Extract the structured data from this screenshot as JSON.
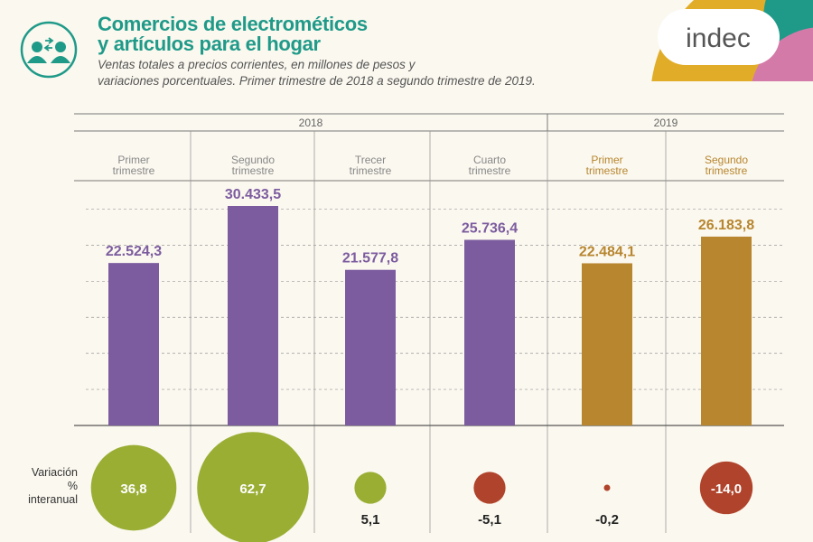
{
  "header": {
    "title_line1": "Comercios de electrométicos",
    "title_line2": "y artículos para el hogar",
    "subtitle_line1": "Ventas totales a precios corrientes, en millones de pesos y",
    "subtitle_line2": "variaciones porcentuales. Primer trimestre de 2018 a segundo trimestre de 2019.",
    "icon": "people-exchange-icon",
    "logo_text": "indec"
  },
  "colors": {
    "title": "#1f9a89",
    "bar_2018": "#7c5c9f",
    "bar_2019": "#b7862f",
    "positive": "#9aae34",
    "negative": "#b0432b"
  },
  "chart_data": {
    "type": "bar",
    "years": [
      {
        "label": "2018",
        "span": 4
      },
      {
        "label": "2019",
        "span": 2
      }
    ],
    "categories": [
      [
        "Primer",
        "trimestre"
      ],
      [
        "Segundo",
        "trimestre"
      ],
      [
        "Trecer",
        "trimestre"
      ],
      [
        "Cuarto",
        "trimestre"
      ],
      [
        "Primer",
        "trimestre"
      ],
      [
        "Segundo",
        "trimestre"
      ]
    ],
    "category_year": [
      "2018",
      "2018",
      "2018",
      "2018",
      "2019",
      "2019"
    ],
    "values": [
      22524.3,
      30433.5,
      21577.8,
      25736.4,
      22484.1,
      26183.8
    ],
    "value_labels": [
      "22.524,3",
      "30.433,5",
      "21.577,8",
      "25.736,4",
      "22.484,1",
      "26.183,8"
    ],
    "ylim": [
      0,
      30433.5
    ],
    "grid": true,
    "grid_step": 5000,
    "variation": {
      "label_lines": [
        "Variación",
        "%",
        "interanual"
      ],
      "values": [
        36.8,
        62.7,
        5.1,
        -5.1,
        -0.2,
        -14.0
      ],
      "value_labels": [
        "36,8",
        "62,7",
        "5,1",
        "-5,1",
        "-0,2",
        "-14,0"
      ]
    }
  }
}
